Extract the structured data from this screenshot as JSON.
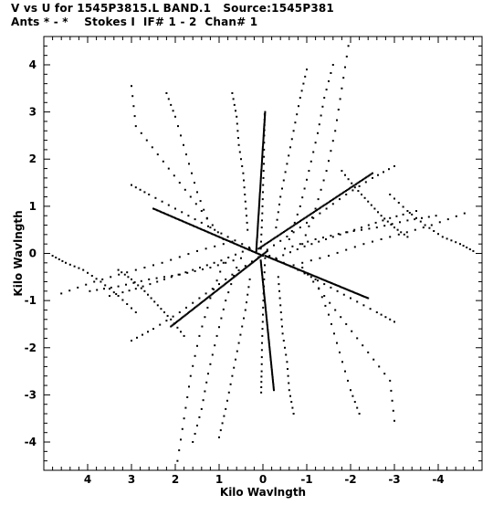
{
  "header": {
    "line1": "V vs U for 1545P3815.L BAND.1   Source:1545P381",
    "line2": "Ants * - *    Stokes I  IF# 1 - 2  Chan# 1"
  },
  "chart_data": {
    "type": "scatter",
    "xlabel": "Kilo Wavlngth",
    "ylabel": "Kilo Wavlngth",
    "xlim": [
      5.0,
      -5.0
    ],
    "ylim": [
      -4.6,
      4.6
    ],
    "x_reversed": true,
    "x_ticks": [
      4,
      3,
      2,
      1,
      0,
      -1,
      -2,
      -3,
      -4
    ],
    "y_ticks": [
      4,
      3,
      2,
      1,
      0,
      -1,
      -2,
      -3,
      -4
    ],
    "x_tick_labels": [
      "4",
      "3",
      "2",
      "1",
      "0",
      "-1",
      "-2",
      "-3",
      "-4"
    ],
    "y_tick_labels": [
      "4",
      "3",
      "2",
      "1",
      "0",
      "-1",
      "-2",
      "-3",
      "-4"
    ],
    "grid": false,
    "marker_color": "#000000",
    "description_tracks": "uv-coverage tracks; each track point also plotted with its conjugate (-u,-v)",
    "tracks": [
      {
        "points": [
          [
            0.05,
            0.1
          ],
          [
            0.02,
            0.7
          ],
          [
            0.0,
            1.3
          ],
          [
            -0.02,
            1.9
          ],
          [
            -0.03,
            2.5
          ],
          [
            -0.04,
            2.95
          ]
        ]
      },
      {
        "points": [
          [
            0.35,
            0.5
          ],
          [
            0.4,
            1.1
          ],
          [
            0.45,
            1.7
          ],
          [
            0.55,
            2.3
          ],
          [
            0.6,
            2.9
          ],
          [
            0.7,
            3.4
          ]
        ]
      },
      {
        "points": [
          [
            -0.3,
            0.55
          ],
          [
            -0.4,
            1.2
          ],
          [
            -0.55,
            1.9
          ],
          [
            -0.7,
            2.6
          ],
          [
            -0.85,
            3.3
          ],
          [
            -1.0,
            3.9
          ]
        ]
      },
      {
        "points": [
          [
            -0.6,
            0.3
          ],
          [
            -0.85,
            1.0
          ],
          [
            -1.05,
            1.75
          ],
          [
            -1.25,
            2.55
          ],
          [
            -1.4,
            3.3
          ],
          [
            -1.6,
            4.0
          ]
        ]
      },
      {
        "points": [
          [
            -0.9,
            0.2
          ],
          [
            -1.2,
            0.95
          ],
          [
            -1.45,
            1.75
          ],
          [
            -1.65,
            2.6
          ],
          [
            -1.8,
            3.5
          ],
          [
            -1.95,
            4.4
          ]
        ]
      },
      {
        "points": [
          [
            0.15,
            0.05
          ],
          [
            0.8,
            0.35
          ],
          [
            1.4,
            0.65
          ],
          [
            2.0,
            0.95
          ],
          [
            2.6,
            1.25
          ],
          [
            3.0,
            1.45
          ]
        ]
      },
      {
        "points": [
          [
            -0.1,
            0.08
          ],
          [
            -0.7,
            0.45
          ],
          [
            -1.3,
            0.85
          ],
          [
            -1.9,
            1.25
          ],
          [
            -2.5,
            1.6
          ],
          [
            -3.0,
            1.85
          ]
        ]
      },
      {
        "points": [
          [
            -0.3,
            -0.1
          ],
          [
            -0.95,
            0.15
          ],
          [
            -1.6,
            0.35
          ],
          [
            -2.25,
            0.55
          ],
          [
            -2.9,
            0.75
          ],
          [
            -3.5,
            0.9
          ]
        ]
      },
      {
        "points": [
          [
            -0.5,
            0.1
          ],
          [
            -1.2,
            0.3
          ],
          [
            -1.9,
            0.45
          ],
          [
            -2.6,
            0.55
          ],
          [
            -3.3,
            0.7
          ],
          [
            -3.95,
            0.8
          ]
        ]
      },
      {
        "points": [
          [
            -0.7,
            -0.25
          ],
          [
            -1.5,
            -0.05
          ],
          [
            -2.3,
            0.2
          ],
          [
            -3.1,
            0.4
          ],
          [
            -3.85,
            0.6
          ],
          [
            -4.6,
            0.85
          ]
        ]
      },
      {
        "points": [
          [
            1.2,
            0.55
          ],
          [
            1.5,
            1.3
          ],
          [
            1.75,
            2.1
          ],
          [
            2.0,
            2.9
          ],
          [
            2.2,
            3.4
          ]
        ]
      },
      {
        "points": [
          [
            0.9,
            0.3
          ],
          [
            1.4,
            0.9
          ],
          [
            1.9,
            1.5
          ],
          [
            2.4,
            2.1
          ],
          [
            2.9,
            2.7
          ],
          [
            3.0,
            3.55
          ]
        ]
      },
      {
        "points": [
          [
            -1.8,
            1.75
          ],
          [
            -2.1,
            1.4
          ],
          [
            -2.4,
            1.1
          ],
          [
            -2.7,
            0.8
          ],
          [
            -3.0,
            0.55
          ],
          [
            -3.3,
            0.35
          ]
        ]
      },
      {
        "points": [
          [
            -2.9,
            1.25
          ],
          [
            -3.3,
            0.9
          ],
          [
            -3.7,
            0.6
          ],
          [
            -4.1,
            0.35
          ],
          [
            -4.5,
            0.2
          ],
          [
            -4.8,
            0.05
          ]
        ]
      }
    ],
    "dense_lines": [
      {
        "from": [
          0.15,
          0.08
        ],
        "to": [
          -0.05,
          3.0
        ]
      },
      {
        "from": [
          0.1,
          0.1
        ],
        "to": [
          -2.5,
          1.7
        ]
      },
      {
        "from": [
          0.0,
          -0.05
        ],
        "to": [
          2.5,
          0.95
        ]
      },
      {
        "from": [
          -0.1,
          0.05
        ],
        "to": [
          2.1,
          -1.55
        ]
      },
      {
        "from": [
          0.05,
          -0.15
        ],
        "to": [
          -0.25,
          -2.9
        ]
      },
      {
        "from": [
          -0.05,
          -0.05
        ],
        "to": [
          -2.4,
          -0.95
        ]
      }
    ]
  }
}
